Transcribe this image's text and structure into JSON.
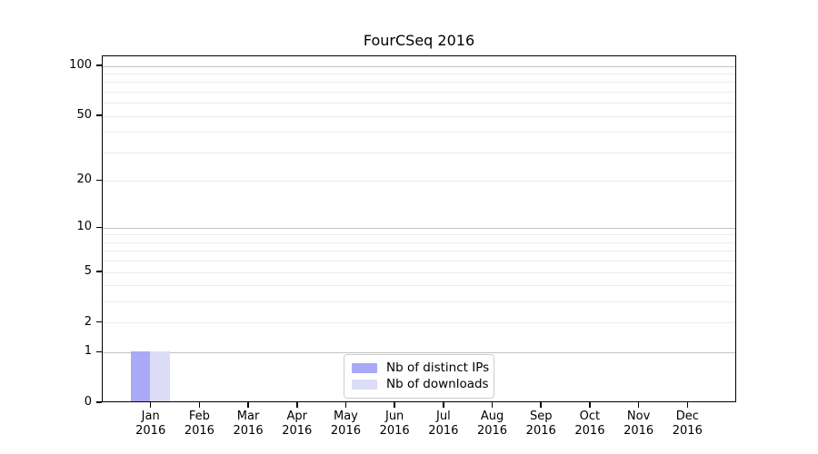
{
  "title": "FourCSeq 2016",
  "chart_data": {
    "type": "bar",
    "title": "FourCSeq 2016",
    "categories": [
      "Jan 2016",
      "Feb 2016",
      "Mar 2016",
      "Apr 2016",
      "May 2016",
      "Jun 2016",
      "Jul 2016",
      "Aug 2016",
      "Sep 2016",
      "Oct 2016",
      "Nov 2016",
      "Dec 2016"
    ],
    "series": [
      {
        "name": "Nb of distinct IPs",
        "color": "#a9a9f7",
        "values": [
          1,
          0,
          0,
          0,
          0,
          0,
          0,
          0,
          0,
          0,
          0,
          0
        ]
      },
      {
        "name": "Nb of downloads",
        "color": "#dcdcf9",
        "values": [
          1,
          0,
          0,
          0,
          0,
          0,
          0,
          0,
          0,
          0,
          0,
          0
        ]
      }
    ],
    "xlabel": "",
    "ylabel": "",
    "yscale": "log1p",
    "yticks": [
      0,
      1,
      2,
      5,
      10,
      20,
      50,
      100
    ],
    "minor_gridlines": [
      2,
      3,
      4,
      5,
      6,
      7,
      8,
      9,
      20,
      30,
      40,
      50,
      60,
      70,
      80,
      90
    ],
    "major_gridlines": [
      1,
      10,
      100
    ],
    "ylim": [
      0,
      115
    ],
    "grid": true,
    "legend_position": "lower center",
    "colors": {
      "grid_major": "#c3c3c3",
      "grid_minor": "#ebebeb",
      "axis": "#000000",
      "text": "#000000",
      "background": "#ffffff"
    }
  }
}
